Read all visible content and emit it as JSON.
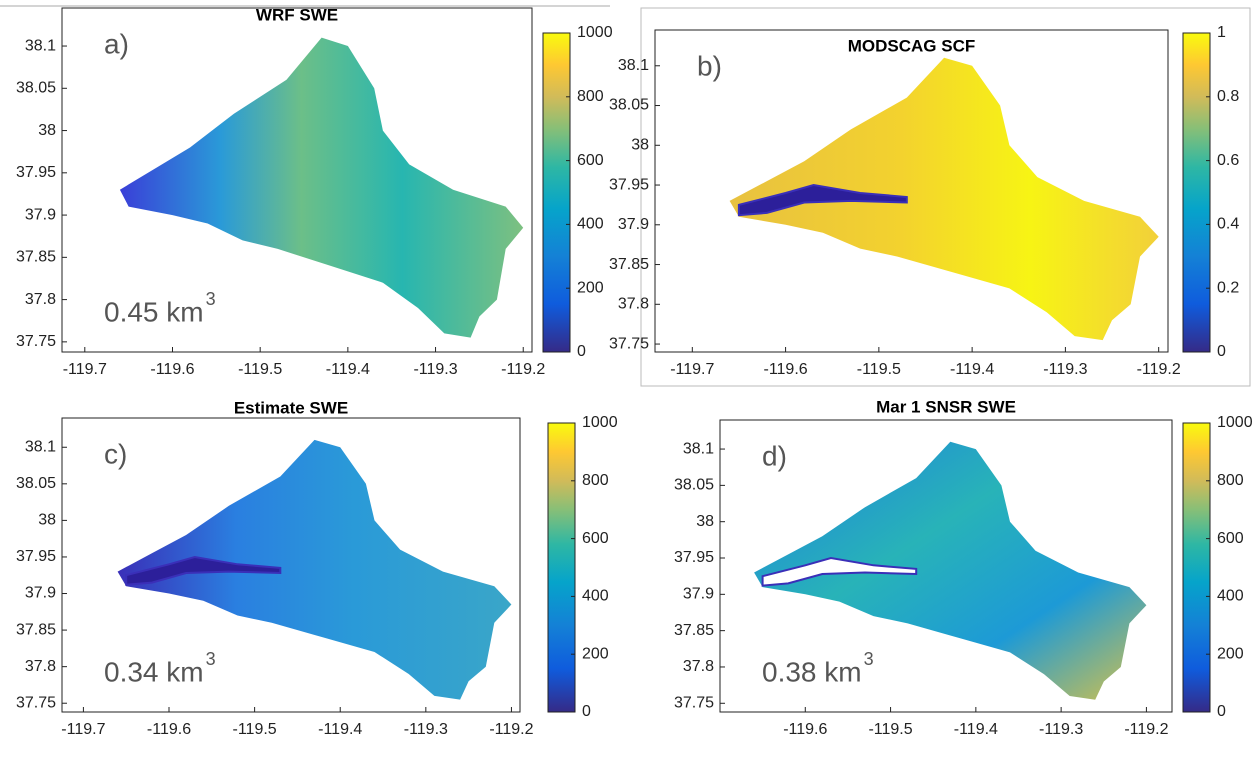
{
  "chart_data": [
    {
      "type": "map",
      "title": "WRF SWE",
      "label": "a)",
      "annotation": "0.45 km",
      "annotation_sup": "3",
      "xlim": [
        -119.726,
        -119.19
      ],
      "ylim": [
        37.738,
        38.145
      ],
      "xticks": [
        -119.7,
        -119.6,
        -119.5,
        -119.4,
        -119.3,
        -119.2
      ],
      "yticks": [
        37.75,
        37.8,
        37.85,
        37.9,
        37.95,
        38,
        38.05,
        38.1
      ],
      "clim": [
        0,
        1000
      ],
      "cticks": [
        0,
        200,
        400,
        600,
        800,
        1000
      ]
    },
    {
      "type": "map",
      "title": "MODSCAG SCF",
      "label": "b)",
      "xlim": [
        -119.74,
        -119.19
      ],
      "ylim": [
        37.74,
        38.145
      ],
      "xticks": [
        -119.7,
        -119.6,
        -119.5,
        -119.4,
        -119.3,
        -119.2
      ],
      "yticks": [
        37.75,
        37.8,
        37.85,
        37.9,
        37.95,
        38,
        38.05,
        38.1
      ],
      "clim": [
        0,
        1
      ],
      "cticks": [
        0,
        0.2,
        0.4,
        0.6,
        0.8,
        1
      ]
    },
    {
      "type": "map",
      "title": "Estimate SWE",
      "label": "c)",
      "annotation": "0.34 km",
      "annotation_sup": "3",
      "xlim": [
        -119.725,
        -119.19
      ],
      "ylim": [
        37.738,
        38.14
      ],
      "xticks": [
        -119.7,
        -119.6,
        -119.5,
        -119.4,
        -119.3,
        -119.2
      ],
      "yticks": [
        37.75,
        37.8,
        37.85,
        37.9,
        37.95,
        38,
        38.05,
        38.1
      ],
      "clim": [
        0,
        1000
      ],
      "cticks": [
        0,
        200,
        400,
        600,
        800,
        1000
      ]
    },
    {
      "type": "map",
      "title": "Mar 1 SNSR SWE",
      "label": "d)",
      "annotation": "0.38 km",
      "annotation_sup": "3",
      "xlim": [
        -119.7,
        -119.17
      ],
      "ylim": [
        37.738,
        38.14
      ],
      "xticks": [
        -119.6,
        -119.5,
        -119.4,
        -119.3,
        -119.2
      ],
      "yticks": [
        37.75,
        37.8,
        37.85,
        37.9,
        37.95,
        38,
        38.05,
        38.1
      ],
      "clim": [
        0,
        1000
      ],
      "cticks": [
        0,
        200,
        400,
        600,
        800,
        1000
      ]
    }
  ]
}
